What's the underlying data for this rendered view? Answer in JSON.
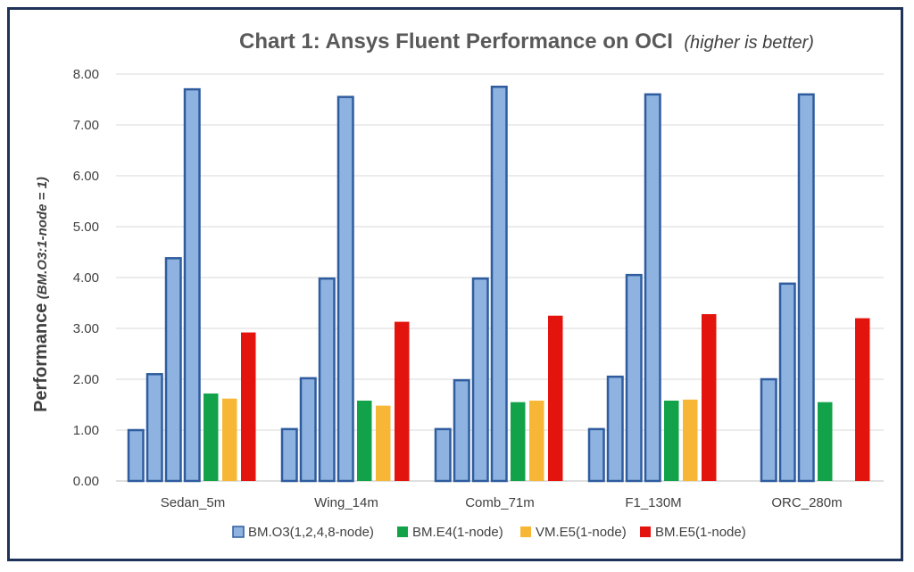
{
  "chart_data": {
    "type": "bar",
    "title": "Chart 1: Ansys Fluent Performance on OCI",
    "subtitle": "(higher is better)",
    "ylabel": "Performance",
    "ylabel_sub": "(BM.O3:1-node = 1)",
    "xlabel": "",
    "ylim": [
      0,
      8
    ],
    "yticks": [
      "0.00",
      "1.00",
      "2.00",
      "3.00",
      "4.00",
      "5.00",
      "6.00",
      "7.00",
      "8.00"
    ],
    "grid": true,
    "legend_position": "bottom",
    "categories": [
      "Sedan_5m",
      "Wing_14m",
      "Comb_71m",
      "F1_130M",
      "ORC_280m"
    ],
    "series": [
      {
        "name": "BM.O3(1,2,4,8-node)",
        "color": "#8fb3e0",
        "border": "#2e5c9e",
        "stack": "BM.O3",
        "group_values": [
          [
            1.0,
            2.1,
            4.38,
            7.7
          ],
          [
            1.02,
            2.02,
            3.98,
            7.55
          ],
          [
            1.02,
            1.98,
            3.98,
            7.75
          ],
          [
            1.02,
            2.05,
            4.05,
            7.6
          ],
          [
            null,
            2.0,
            3.88,
            7.6
          ]
        ]
      },
      {
        "name": "BM.E4(1-node)",
        "color": "#12a34a",
        "values": [
          1.72,
          1.58,
          1.55,
          1.58,
          1.55
        ]
      },
      {
        "name": "VM.E5(1-node)",
        "color": "#f8b637",
        "values": [
          1.62,
          1.48,
          1.58,
          1.6,
          null
        ]
      },
      {
        "name": "BM.E5(1-node)",
        "color": "#e3140d",
        "values": [
          2.92,
          3.13,
          3.25,
          3.28,
          3.2
        ]
      }
    ]
  }
}
